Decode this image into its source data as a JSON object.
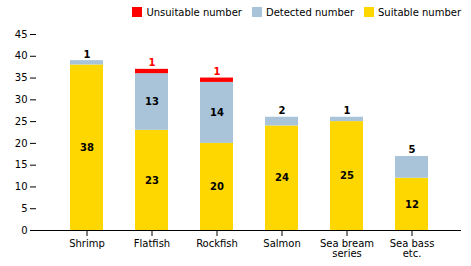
{
  "chart_data": {
    "type": "bar",
    "stacked": true,
    "categories": [
      "Shrimp",
      "Flatfish",
      "Rockfish",
      "Salmon",
      "Sea bream\nseries",
      "Sea bass\netc."
    ],
    "series": [
      {
        "name": "Suitable number",
        "color": "#FFD700",
        "values": [
          38,
          23,
          20,
          24,
          25,
          12
        ],
        "data_labels": true
      },
      {
        "name": "Detected number",
        "color": "#A9C4D9",
        "values": [
          1,
          13,
          14,
          2,
          1,
          5
        ],
        "value_labels": [
          null,
          "13",
          "14",
          null,
          null,
          null
        ]
      },
      {
        "name": "Unsuitable number",
        "color": "#FF0000",
        "values": [
          0,
          1,
          1,
          0,
          0,
          0
        ],
        "data_labels": false
      }
    ],
    "annotations": [
      {
        "category": "Shrimp",
        "text": "1",
        "color": "black"
      },
      {
        "category": "Flatfish",
        "text": "1",
        "color": "red"
      },
      {
        "category": "Rockfish",
        "text": "1",
        "color": "red"
      },
      {
        "category": "Salmon",
        "text": "2",
        "color": "black"
      },
      {
        "category": "Sea bream\nseries",
        "text": "1",
        "color": "black"
      },
      {
        "category": "Sea bass\netc.",
        "text": "5",
        "color": "black"
      }
    ],
    "ylim": [
      0,
      45
    ],
    "yticks": [
      0,
      5,
      10,
      15,
      20,
      25,
      30,
      35,
      40,
      45
    ],
    "grid": false,
    "legend": "upper right"
  }
}
